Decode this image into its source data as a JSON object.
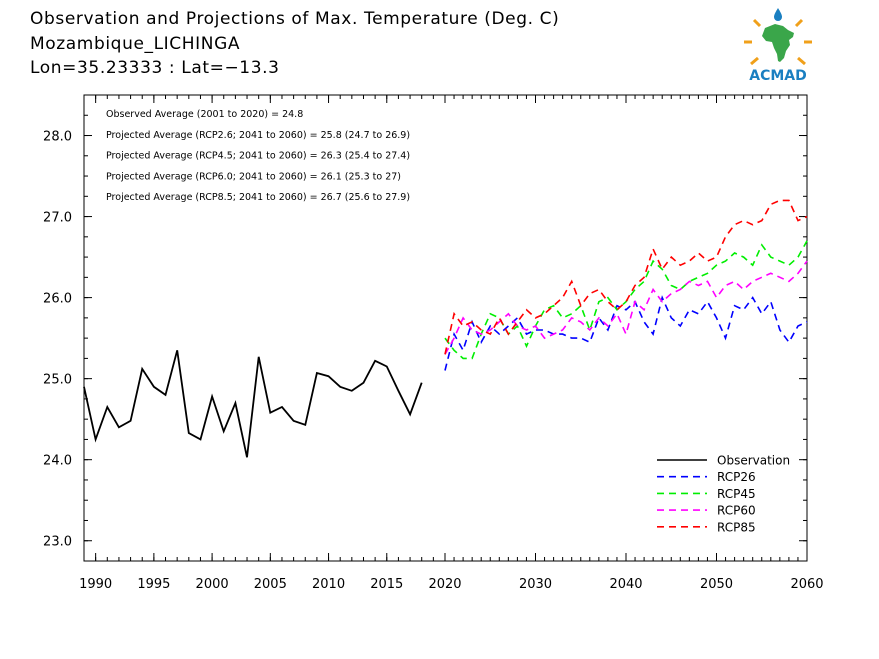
{
  "title_lines": [
    "Observation and Projections of Max. Temperature (Deg. C)",
    "Mozambique_LICHINGA",
    "Lon=35.23333 : Lat=−13.3"
  ],
  "logo": {
    "text": "ACMAD",
    "icon": "africa-map-sun-logo",
    "colors": {
      "africa": "#3aa64a",
      "text": "#1a7fc1",
      "sun": "#f0a01a",
      "drop": "#1a7fc1"
    }
  },
  "chart_data": {
    "type": "line",
    "xlim": [
      1989,
      2060
    ],
    "ylim": [
      22.75,
      28.5
    ],
    "x_ticks": [
      1990,
      1995,
      2000,
      2005,
      2010,
      2015,
      2020,
      2030,
      2040,
      2050,
      2060
    ],
    "y_ticks": [
      23.0,
      24.0,
      25.0,
      26.0,
      27.0,
      28.0
    ],
    "y_tick_labels": [
      "23.0",
      "24.0",
      "25.0",
      "26.0",
      "27.0",
      "28.0"
    ],
    "grid": false,
    "legend_position": "bottom-right",
    "annotations": [
      "Observed Average (2001 to 2020) = 24.8",
      "Projected Average (RCP2.6; 2041 to 2060) = 25.8 (24.7 to 26.9)",
      "Projected Average (RCP4.5; 2041 to 2060) = 26.3 (25.4 to 27.4)",
      "Projected Average (RCP6.0; 2041 to 2060) = 26.1 (25.3 to 27)",
      "Projected Average (RCP8.5; 2041 to 2060) = 26.7 (25.6 to 27.9)"
    ],
    "series": [
      {
        "name": "Observation",
        "color": "#000000",
        "dashed": false,
        "x": [
          1989,
          1990,
          1991,
          1992,
          1993,
          1994,
          1995,
          1996,
          1997,
          1998,
          1999,
          2000,
          2001,
          2002,
          2003,
          2004,
          2005,
          2006,
          2007,
          2008,
          2009,
          2010,
          2011,
          2012,
          2013,
          2014,
          2015,
          2016,
          2017,
          2018,
          2019
        ],
        "y": [
          24.9,
          24.25,
          24.65,
          24.4,
          24.48,
          25.12,
          24.9,
          24.8,
          25.35,
          24.33,
          24.25,
          24.78,
          24.35,
          24.7,
          24.03,
          25.27,
          24.58,
          24.65,
          24.48,
          24.43,
          25.07,
          25.03,
          24.9,
          24.85,
          24.95,
          25.22,
          25.15,
          24.85,
          24.56,
          24.95,
          null
        ]
      },
      {
        "name": "RCP26",
        "color": "#0000ff",
        "dashed": true,
        "x": [
          2020,
          2021,
          2022,
          2023,
          2024,
          2025,
          2026,
          2027,
          2028,
          2029,
          2030,
          2031,
          2032,
          2033,
          2034,
          2035,
          2036,
          2037,
          2038,
          2039,
          2040,
          2041,
          2042,
          2043,
          2044,
          2045,
          2046,
          2047,
          2048,
          2049,
          2050,
          2051,
          2052,
          2053,
          2054,
          2055,
          2056,
          2057,
          2058,
          2059,
          2060
        ],
        "y": [
          25.1,
          25.55,
          25.35,
          25.7,
          25.45,
          25.65,
          25.55,
          25.65,
          25.75,
          25.55,
          25.6,
          25.6,
          25.55,
          25.55,
          25.5,
          25.5,
          25.45,
          25.75,
          25.6,
          25.9,
          25.85,
          25.95,
          25.7,
          25.55,
          26.0,
          25.75,
          25.65,
          25.85,
          25.8,
          25.95,
          25.75,
          25.5,
          25.9,
          25.85,
          26.0,
          25.8,
          25.95,
          25.6,
          25.45,
          25.65,
          25.7
        ]
      },
      {
        "name": "RCP45",
        "color": "#00ee00",
        "dashed": true,
        "x": [
          2020,
          2021,
          2022,
          2023,
          2024,
          2025,
          2026,
          2027,
          2028,
          2029,
          2030,
          2031,
          2032,
          2033,
          2034,
          2035,
          2036,
          2037,
          2038,
          2039,
          2040,
          2041,
          2042,
          2043,
          2044,
          2045,
          2046,
          2047,
          2048,
          2049,
          2050,
          2051,
          2052,
          2053,
          2054,
          2055,
          2056,
          2057,
          2058,
          2059,
          2060
        ],
        "y": [
          25.5,
          25.35,
          25.25,
          25.25,
          25.55,
          25.8,
          25.75,
          25.55,
          25.65,
          25.4,
          25.65,
          25.85,
          25.9,
          25.75,
          25.8,
          25.9,
          25.6,
          25.95,
          26.0,
          25.85,
          25.95,
          26.1,
          26.2,
          26.45,
          26.35,
          26.15,
          26.1,
          26.2,
          26.25,
          26.3,
          26.4,
          26.45,
          26.55,
          26.5,
          26.4,
          26.65,
          26.5,
          26.45,
          26.4,
          26.5,
          26.7
        ]
      },
      {
        "name": "RCP60",
        "color": "#ff00ff",
        "dashed": true,
        "x": [
          2020,
          2021,
          2022,
          2023,
          2024,
          2025,
          2026,
          2027,
          2028,
          2029,
          2030,
          2031,
          2032,
          2033,
          2034,
          2035,
          2036,
          2037,
          2038,
          2039,
          2040,
          2041,
          2042,
          2043,
          2044,
          2045,
          2046,
          2047,
          2048,
          2049,
          2050,
          2051,
          2052,
          2053,
          2054,
          2055,
          2056,
          2057,
          2058,
          2059,
          2060
        ],
        "y": [
          25.3,
          25.5,
          25.75,
          25.6,
          25.55,
          25.6,
          25.7,
          25.8,
          25.65,
          25.6,
          25.65,
          25.5,
          25.55,
          25.6,
          25.75,
          25.7,
          25.6,
          25.75,
          25.65,
          25.8,
          25.55,
          25.95,
          25.85,
          26.1,
          25.95,
          26.05,
          26.1,
          26.2,
          26.15,
          26.2,
          26.0,
          26.15,
          26.2,
          26.1,
          26.2,
          26.25,
          26.3,
          26.25,
          26.2,
          26.3,
          26.45
        ]
      },
      {
        "name": "RCP85",
        "color": "#ff0000",
        "dashed": true,
        "x": [
          2020,
          2021,
          2022,
          2023,
          2024,
          2025,
          2026,
          2027,
          2028,
          2029,
          2030,
          2031,
          2032,
          2033,
          2034,
          2035,
          2036,
          2037,
          2038,
          2039,
          2040,
          2041,
          2042,
          2043,
          2044,
          2045,
          2046,
          2047,
          2048,
          2049,
          2050,
          2051,
          2052,
          2053,
          2054,
          2055,
          2056,
          2057,
          2058,
          2059,
          2060
        ],
        "y": [
          25.3,
          25.8,
          25.65,
          25.7,
          25.6,
          25.55,
          25.75,
          25.55,
          25.7,
          25.85,
          25.75,
          25.8,
          25.9,
          26.0,
          26.2,
          25.9,
          26.05,
          26.1,
          25.95,
          25.85,
          25.95,
          26.15,
          26.25,
          26.6,
          26.35,
          26.5,
          26.4,
          26.45,
          26.55,
          26.45,
          26.5,
          26.75,
          26.9,
          26.95,
          26.9,
          26.95,
          27.15,
          27.2,
          27.2,
          26.95,
          27.0
        ]
      }
    ]
  }
}
